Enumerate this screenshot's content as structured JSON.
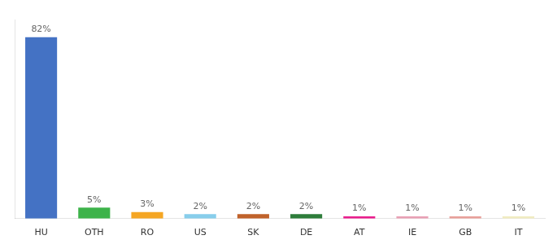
{
  "chart_data": {
    "type": "bar",
    "categories": [
      "HU",
      "OTH",
      "RO",
      "US",
      "SK",
      "DE",
      "AT",
      "IE",
      "GB",
      "IT"
    ],
    "values": [
      82,
      5,
      3,
      2,
      2,
      2,
      1,
      1,
      1,
      1
    ],
    "value_labels": [
      "82%",
      "5%",
      "3%",
      "2%",
      "2%",
      "2%",
      "1%",
      "1%",
      "1%",
      "1%"
    ],
    "colors": [
      "#4472c4",
      "#3db34a",
      "#f5a623",
      "#87ceeb",
      "#c0622b",
      "#2d7d3a",
      "#e91e8c",
      "#e8a0b4",
      "#e8a09a",
      "#f0ecc0"
    ],
    "ylim": [
      0,
      90
    ],
    "data_labels": true,
    "tick_labels": "x",
    "grid": false
  }
}
